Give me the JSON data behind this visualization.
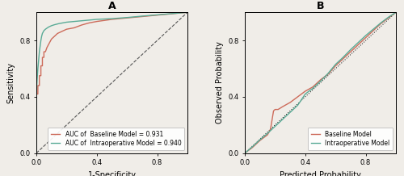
{
  "panel_A": {
    "title": "A",
    "xlabel": "1-Specificity",
    "ylabel": "Sensitivity",
    "xlim": [
      0.0,
      1.0
    ],
    "ylim": [
      0.0,
      1.0
    ],
    "xticks": [
      0.0,
      0.4,
      0.8
    ],
    "yticks": [
      0.0,
      0.4,
      0.8
    ],
    "legend": [
      "AUC of  Baseline Model = 0.931",
      "AUC of  Intraoperative Model = 0.940"
    ],
    "baseline_color": "#cd6b5a",
    "intraop_color": "#5aab96",
    "diag_color": "#555555"
  },
  "panel_B": {
    "title": "B",
    "xlabel": "Predicted Probability",
    "ylabel": "Observed Probability",
    "xlim": [
      0.0,
      1.0
    ],
    "ylim": [
      0.0,
      1.0
    ],
    "xticks": [
      0.0,
      0.4,
      0.8
    ],
    "yticks": [
      0.0,
      0.4,
      0.8
    ],
    "legend": [
      "Baseline Model",
      "Intraoperative Model"
    ],
    "baseline_color": "#cd6b5a",
    "intraop_color": "#5aab96",
    "diag_color": "#555555"
  },
  "background_color": "#f0ede8",
  "tick_fontsize": 6,
  "label_fontsize": 7,
  "legend_fontsize": 5.5,
  "title_fontsize": 9
}
